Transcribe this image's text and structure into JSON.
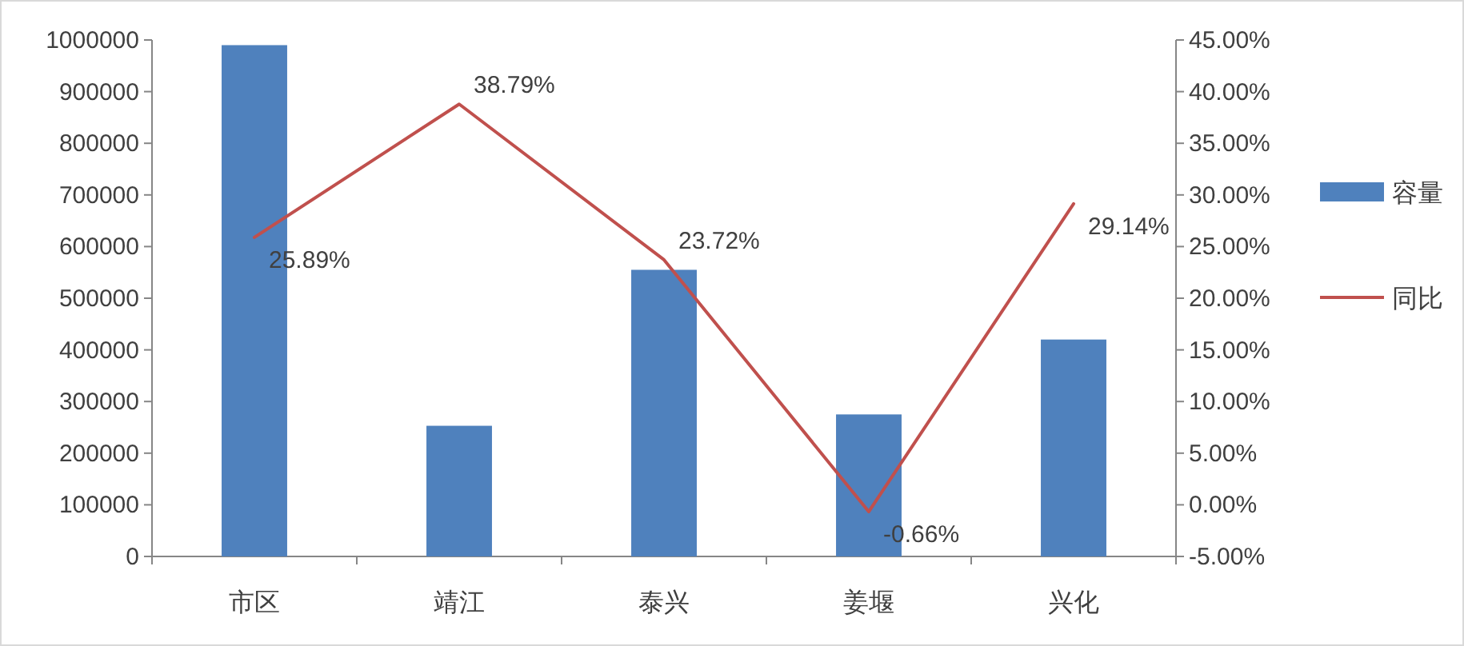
{
  "chart_data": {
    "type": "bar",
    "categories": [
      "市区",
      "靖江",
      "泰兴",
      "姜堰",
      "兴化"
    ],
    "series": [
      {
        "name": "容量",
        "color": "#4f81bd",
        "values": [
          990000,
          253000,
          555000,
          275000,
          420000
        ]
      },
      {
        "name": "同比",
        "type": "line",
        "axis": "y2",
        "color": "#c0504d",
        "values": [
          25.89,
          38.79,
          23.72,
          -0.66,
          29.14
        ],
        "value_labels": [
          "25.89%",
          "38.79%",
          "23.72%",
          "-0.66%",
          "29.14%"
        ]
      }
    ],
    "ylim": [
      0,
      1000000
    ],
    "yticks": [
      0,
      100000,
      200000,
      300000,
      400000,
      500000,
      600000,
      700000,
      800000,
      900000,
      1000000
    ],
    "y2lim": [
      -5,
      45
    ],
    "y2ticks": [
      {
        "value": -5,
        "label": "-5.00%"
      },
      {
        "value": 0,
        "label": "0.00%"
      },
      {
        "value": 5,
        "label": "5.00%"
      },
      {
        "value": 10,
        "label": "10.00%"
      },
      {
        "value": 15,
        "label": "15.00%"
      },
      {
        "value": 20,
        "label": "20.00%"
      },
      {
        "value": 25,
        "label": "25.00%"
      },
      {
        "value": 30,
        "label": "30.00%"
      },
      {
        "value": 35,
        "label": "35.00%"
      },
      {
        "value": 40,
        "label": "40.00%"
      },
      {
        "value": 45,
        "label": "45.00%"
      }
    ],
    "legend": "right"
  }
}
